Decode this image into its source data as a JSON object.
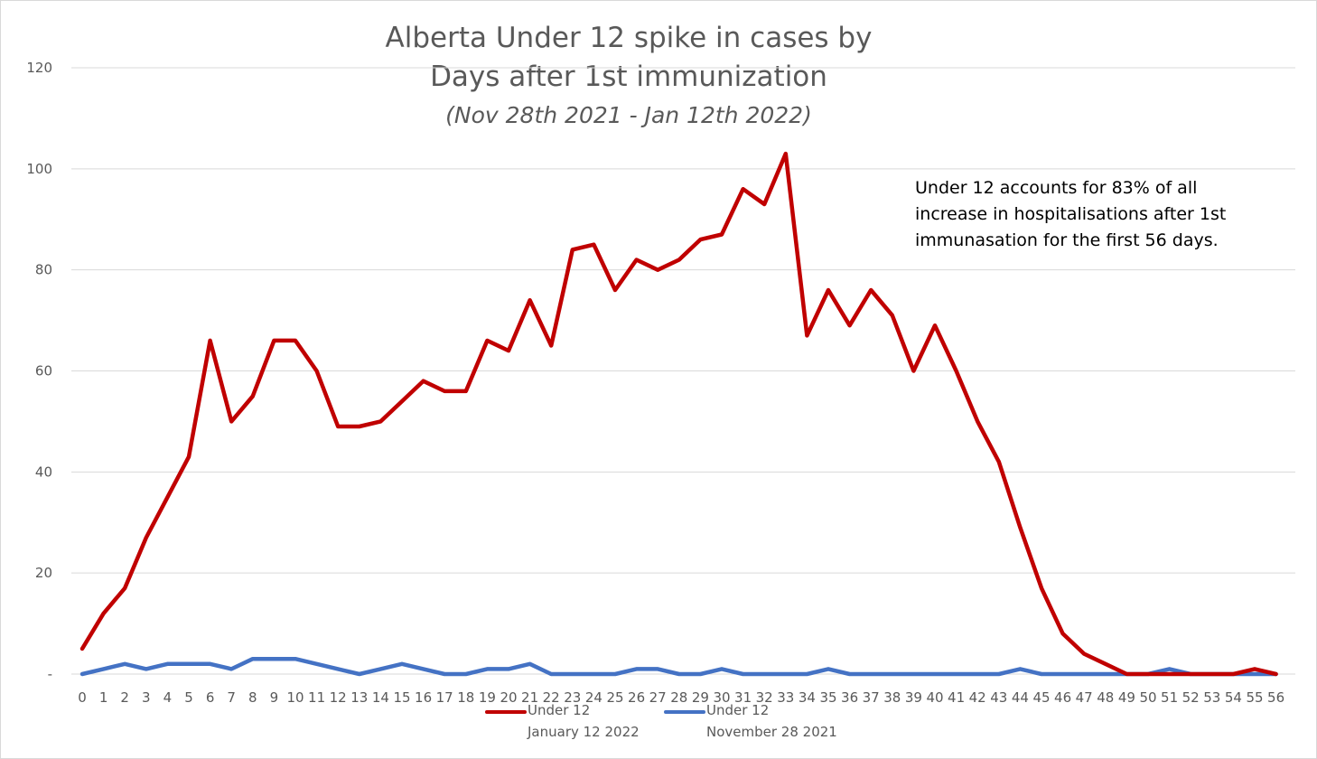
{
  "chart_data": {
    "type": "line",
    "title": [
      "Alberta Under 12 spike in cases by",
      "Days after 1st immunization"
    ],
    "subtitle": "(Nov 28th 2021 - Jan 12th 2022)",
    "annotation": [
      "Under 12 accounts for 83% of all",
      "increase in hospitalisations after 1st",
      "immunasation for the first 56 days."
    ],
    "xlabel": "",
    "ylabel": "",
    "ylim": [
      0,
      120
    ],
    "y_ticks": [
      0,
      20,
      40,
      60,
      80,
      100,
      120
    ],
    "y_tick_labels": [
      "-",
      "20",
      "40",
      "60",
      "80",
      "100",
      "120"
    ],
    "grid": true,
    "legend_position": "bottom",
    "x": [
      0,
      1,
      2,
      3,
      4,
      5,
      6,
      7,
      8,
      9,
      10,
      11,
      12,
      13,
      14,
      15,
      16,
      17,
      18,
      19,
      20,
      21,
      22,
      23,
      24,
      25,
      26,
      27,
      28,
      29,
      30,
      31,
      32,
      33,
      34,
      35,
      36,
      37,
      38,
      39,
      40,
      41,
      42,
      43,
      44,
      45,
      46,
      47,
      48,
      49,
      50,
      51,
      52,
      53,
      54,
      55,
      56
    ],
    "series": [
      {
        "name": "Under 12",
        "legend_sublabel": "January 12 2022",
        "color": "#c00000",
        "values": [
          5,
          12,
          17,
          27,
          35,
          43,
          66,
          50,
          55,
          66,
          66,
          60,
          49,
          49,
          50,
          54,
          58,
          56,
          56,
          66,
          64,
          74,
          65,
          84,
          85,
          76,
          82,
          80,
          82,
          86,
          87,
          96,
          93,
          103,
          67,
          76,
          69,
          76,
          71,
          60,
          69,
          60,
          50,
          42,
          29,
          17,
          8,
          4,
          2,
          0,
          0,
          0,
          0,
          0,
          0,
          1,
          0
        ]
      },
      {
        "name": "Under 12",
        "legend_sublabel": "November 28 2021",
        "color": "#4472c4",
        "values": [
          0,
          1,
          2,
          1,
          2,
          2,
          2,
          1,
          3,
          3,
          3,
          2,
          1,
          0,
          1,
          2,
          1,
          0,
          0,
          1,
          1,
          2,
          0,
          0,
          0,
          0,
          1,
          1,
          0,
          0,
          1,
          0,
          0,
          0,
          0,
          1,
          0,
          0,
          0,
          0,
          0,
          0,
          0,
          0,
          1,
          0,
          0,
          0,
          0,
          0,
          0,
          1,
          0,
          0,
          0,
          0,
          0
        ]
      }
    ]
  }
}
